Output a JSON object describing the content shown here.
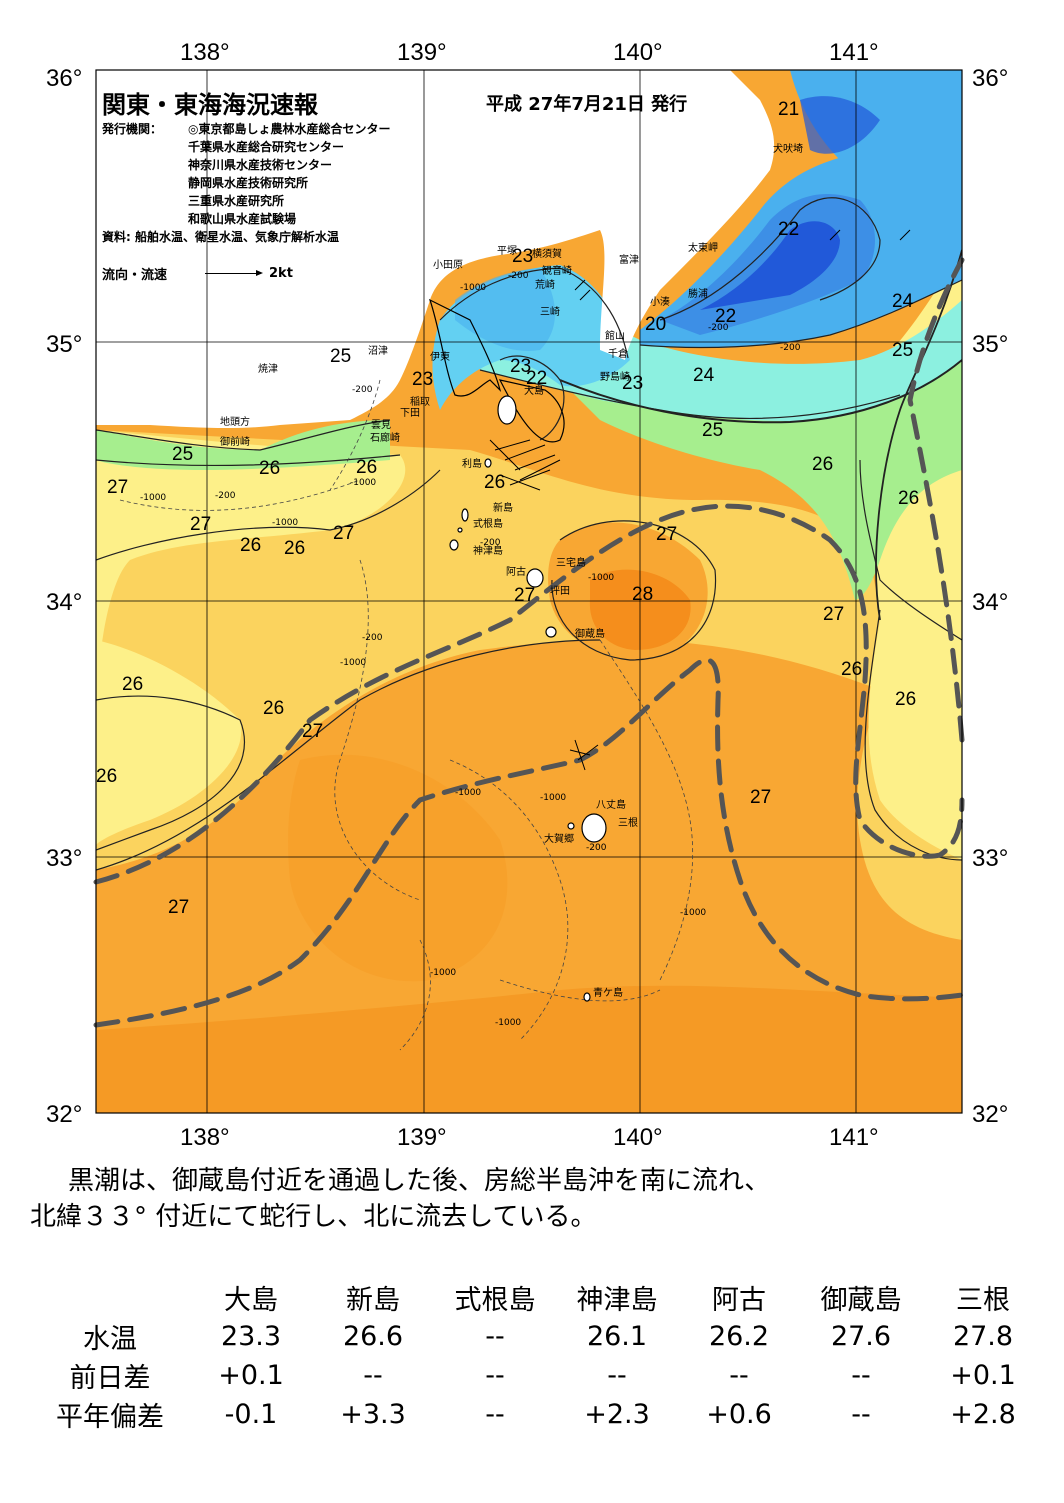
{
  "title": "関東・東海海況速報",
  "issue_date": "平成 27年7月21日 発行",
  "issuers_label": "発行機関：",
  "issuers": [
    "◎東京都島しょ農林水産総合センター",
    "千葉県水産総合研究センター",
    "神奈川県水産技術センター",
    "静岡県水産技術研究所",
    "三重県水産研究所",
    "和歌山県水産試験場"
  ],
  "sources": "資料: 船舶水温、衛星水温、気象庁解析水温",
  "flow_legend": {
    "label": "流向・流速",
    "scale": "2kt"
  },
  "lon_labels": [
    "138°",
    "139°",
    "140°",
    "141°"
  ],
  "lat_labels": [
    "36°",
    "35°",
    "34°",
    "33°",
    "32°"
  ],
  "colors": {
    "t20": "#2159d9",
    "t21": "#3d8fe6",
    "t22": "#4ab0ee",
    "t23": "#63d0f2",
    "t24": "#8cf0e0",
    "t25": "#a6ee8e",
    "t26": "#fdf089",
    "t27": "#fbd35e",
    "t28": "#f8a733",
    "t29": "#f58e1c",
    "kuroshio": "#555555"
  },
  "isotherm_labels": [
    "20",
    "21",
    "22",
    "22",
    "22",
    "23",
    "23",
    "23",
    "23",
    "24",
    "24",
    "25",
    "25",
    "25",
    "25",
    "26",
    "26",
    "26",
    "26",
    "26",
    "26",
    "26",
    "26",
    "26",
    "26",
    "27",
    "27",
    "27",
    "27",
    "27",
    "27",
    "27",
    "27",
    "27",
    "28"
  ],
  "depth_labels": [
    "-1000",
    "-200",
    "-1000",
    "-200",
    "-1000",
    "-200",
    "-1000",
    "-200",
    "-1000",
    "-200",
    "-1000",
    "-1000",
    "-1000",
    "-1000",
    "-1000",
    "-200",
    "-200",
    "-1000",
    "-200"
  ],
  "place_names": {
    "odawara": "小田原",
    "hiratsuka": "平塚",
    "yokosuka": "横須賀",
    "kannonzaki": "観音崎",
    "futtsu": "富津",
    "arasaki": "荒崎",
    "misaki": "三崎",
    "inubouzaki": "犬吠埼",
    "taitomisaki": "太東岬",
    "katsuura": "勝浦",
    "kominato": "小湊",
    "tateyama": "館山",
    "chikura": "千倉",
    "nojimazaki": "野島崎",
    "numazu": "沼津",
    "yaizu": "焼津",
    "ito": "伊東",
    "inatori": "稲取",
    "shimoda": "下田",
    "kumomi": "雲見",
    "irouzaki": "石廊崎",
    "jitougata": "地頭方",
    "omaezaki": "御前崎",
    "oshima": "大島",
    "toshima": "利島",
    "niijima": "新島",
    "shikinejima": "式根島",
    "kouzushima": "神津島",
    "miyakejima": "三宅島",
    "ako": "阿古",
    "tsubota": "坪田",
    "mikurajima": "御蔵島",
    "hachijojima": "八丈島",
    "mine": "三根",
    "ogago": "大賀郷",
    "aogashima": "青ケ島"
  },
  "summary": [
    "黒潮は、御蔵島付近を通過した後、房総半島沖を南に流れ、",
    "北緯３３° 付近にて蛇行し、北に流去している。"
  ],
  "table": {
    "columns": [
      "大島",
      "新島",
      "式根島",
      "神津島",
      "阿古",
      "御蔵島",
      "三根"
    ],
    "rows": [
      {
        "label": "水温",
        "values": [
          "23.3",
          "26.6",
          "--",
          "26.1",
          "26.2",
          "27.6",
          "27.8"
        ]
      },
      {
        "label": "前日差",
        "values": [
          "+0.1",
          "--",
          "--",
          "--",
          "--",
          "--",
          "+0.1"
        ]
      },
      {
        "label": "平年偏差",
        "values": [
          "-0.1",
          "+3.3",
          "--",
          "+2.3",
          "+0.6",
          "--",
          "+2.8"
        ]
      }
    ]
  }
}
